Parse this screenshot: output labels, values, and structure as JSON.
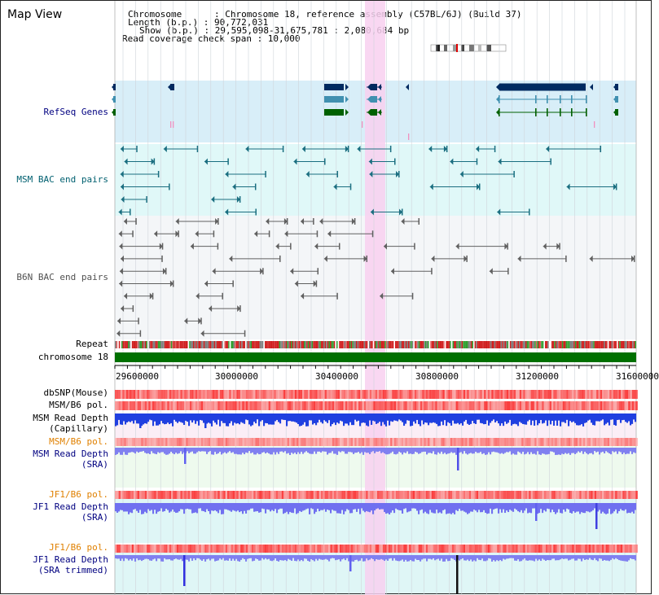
{
  "header": {
    "title": "Map View",
    "info_lines": [
      "Chromosome      : Chromosome 18, reference assembly (C57BL/6J) (Build 37)",
      "Length (b.p.) : 90,772,031",
      "Show (b.p.) : 29,595,098-31,675,781 : 2,080,684 bp",
      "Read coverage check span : 10,000"
    ]
  },
  "tracks": {
    "refseq": "RefSeq Genes",
    "msm_bac": "MSM BAC end pairs",
    "b6n_bac": "B6N BAC end pairs",
    "repeat": "Repeat",
    "chromosome": "chromosome 18",
    "dbsnp": "dbSNP(Mouse)",
    "msm_b6_pol": "MSM/B6 pol.",
    "msm_depth_cap_1": "MSM Read Depth",
    "msm_depth_cap_2": "(Capillary)",
    "msm_b6_pol_2": "MSM/B6 pol.",
    "msm_depth_sra_1": "MSM Read Depth",
    "msm_depth_sra_2": "(SRA)",
    "jf1_b6_pol": "JF1/B6 pol.",
    "jf1_depth_sra_1": "JF1 Read Depth",
    "jf1_depth_sra_2": "(SRA)",
    "jf1_b6_pol_2": "JF1/B6 pol.",
    "jf1_depth_trim_1": "JF1 Read Depth",
    "jf1_depth_trim_2": "(SRA trimmed)"
  },
  "axis": {
    "ticks": [
      "29600000",
      "30000000",
      "30400000",
      "30800000",
      "31200000",
      "31600000"
    ]
  },
  "colors": {
    "label_navy": "#000080",
    "label_teal": "#006070",
    "label_gray": "#505050",
    "label_orange": "#e08000",
    "highlight": "#f8d0f0",
    "refseq_bg": "#d8eef8",
    "msm_bg": "#e0f8f8",
    "b6n_bg": "#f4f6f8",
    "chromosome": "#007000"
  }
}
